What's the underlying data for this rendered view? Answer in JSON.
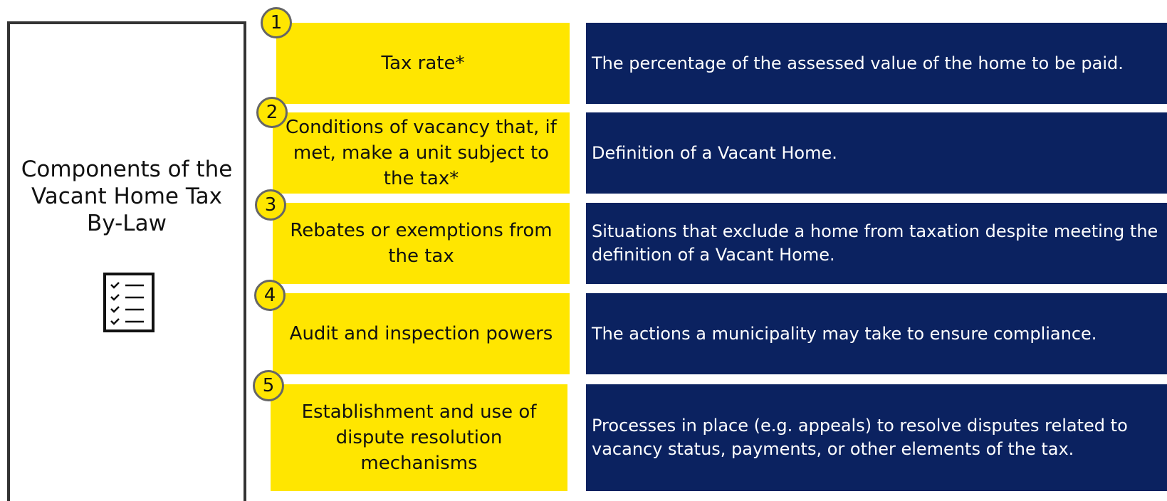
{
  "title": "Components of the Vacant Home Tax By-Law",
  "items": [
    {
      "number": "1",
      "label": "Tax rate*",
      "description": "The percentage of the assessed value of the home to be paid."
    },
    {
      "number": "2",
      "label": "Conditions of vacancy that, if met, make a unit subject to the tax*",
      "description": "Definition of a Vacant Home."
    },
    {
      "number": "3",
      "label": "Rebates or exemptions from the tax",
      "description": "Situations that exclude a home from taxation despite meeting the definition of a Vacant Home."
    },
    {
      "number": "4",
      "label": "Audit and inspection powers",
      "description": "The actions a municipality may take to ensure compliance."
    },
    {
      "number": "5",
      "label": "Establishment and use of dispute resolution mechanisms",
      "description": "Processes in place (e.g. appeals) to resolve disputes related to vacancy status, payments, or other elements of the tax."
    }
  ]
}
